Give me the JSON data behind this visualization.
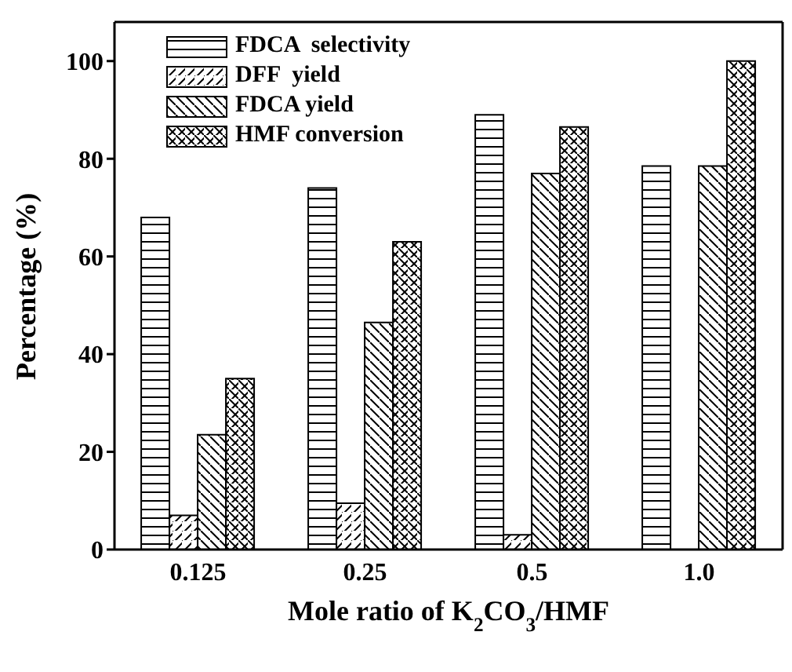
{
  "chart_data": {
    "type": "bar",
    "xlabel": "Mole ratio of K$_{2}$CO$_{3}$/HMF",
    "ylabel": "Percentage (%)",
    "categories": [
      "0.125",
      "0.25",
      "0.5",
      "1.0"
    ],
    "series": [
      {
        "name": "FDCA  selectivity",
        "color": "#000000",
        "values": [
          68,
          74,
          89,
          78.5
        ]
      },
      {
        "name": "DFF  yield",
        "color": "#000000",
        "values": [
          7,
          9.5,
          3,
          null
        ]
      },
      {
        "name": "FDCA yield",
        "color": "#000000",
        "values": [
          23.5,
          46.5,
          77,
          78.5
        ]
      },
      {
        "name": "HMF conversion",
        "color": "#000000",
        "values": [
          35,
          63,
          86.5,
          100
        ]
      }
    ],
    "ylim": [
      0,
      108
    ],
    "yticks": [
      0,
      20,
      40,
      60,
      80,
      100
    ],
    "grid": false,
    "legend": "top left"
  }
}
